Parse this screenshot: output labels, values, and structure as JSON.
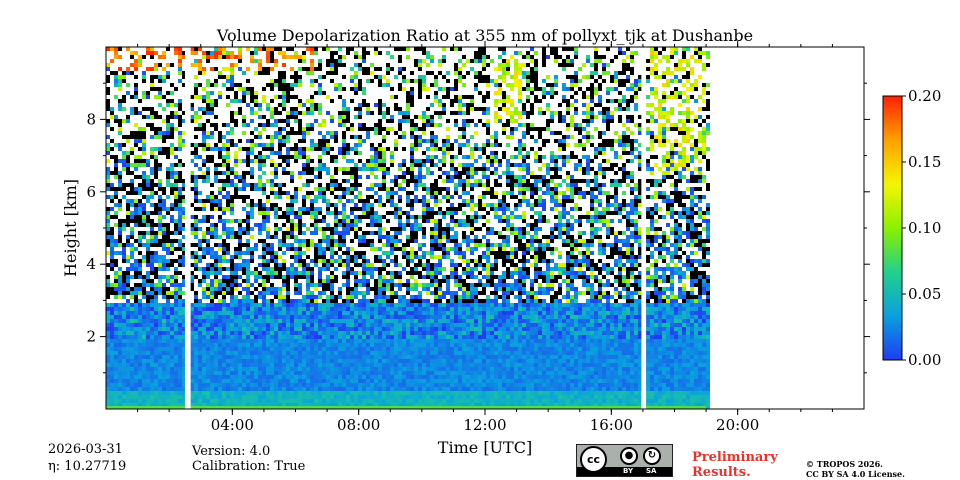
{
  "chart_data": {
    "type": "heatmap",
    "title": "Volume Depolarization Ratio at 355 nm of pollyxt_tjk at Dushanbe",
    "xlabel": "Time [UTC]",
    "ylabel": "Height [km]",
    "xlim_hours": [
      0,
      24
    ],
    "ylim_km": [
      0,
      10
    ],
    "x_ticks": [
      {
        "hour": 4,
        "label": "04:00"
      },
      {
        "hour": 8,
        "label": "08:00"
      },
      {
        "hour": 12,
        "label": "12:00"
      },
      {
        "hour": 16,
        "label": "16:00"
      },
      {
        "hour": 20,
        "label": "20:00"
      }
    ],
    "x_minor_step_hours": 1,
    "y_ticks": [
      {
        "km": 2,
        "label": "2"
      },
      {
        "km": 4,
        "label": "4"
      },
      {
        "km": 6,
        "label": "6"
      },
      {
        "km": 8,
        "label": "8"
      }
    ],
    "colorbar": {
      "min": 0.0,
      "max": 0.2,
      "ticks": [
        {
          "value": 0.0,
          "label": "0.00"
        },
        {
          "value": 0.05,
          "label": "0.05"
        },
        {
          "value": 0.1,
          "label": "0.10"
        },
        {
          "value": 0.15,
          "label": "0.15"
        },
        {
          "value": 0.2,
          "label": "0.20"
        }
      ],
      "colormap": [
        "#1f3df0",
        "#0aa0e0",
        "#22d08a",
        "#8cf000",
        "#f5f500",
        "#ffa000",
        "#ff2000"
      ]
    },
    "data_coverage_hours": [
      0,
      19.0
    ],
    "data_gaps_hours": [
      [
        2.5,
        2.68
      ],
      [
        16.95,
        17.1
      ]
    ],
    "layers": [
      {
        "name": "aerosol boundary layer",
        "height_km": [
          0,
          3
        ],
        "depol_ratio": 0.03
      },
      {
        "name": "surface layer",
        "height_km": [
          0,
          0.6
        ],
        "depol_ratio": 0.05
      },
      {
        "name": "noisy free troposphere",
        "height_km": [
          3,
          10
        ],
        "depol_ratio": "noise"
      },
      {
        "name": "cirrus cloud",
        "time_hours": [
          0,
          6.5
        ],
        "height_km": [
          9.4,
          10
        ],
        "depol_ratio": 0.2
      },
      {
        "name": "cirrus fall streak",
        "time_hours": [
          12.2,
          13.1
        ],
        "height_km": [
          8,
          9.8
        ],
        "depol_ratio": 0.15
      },
      {
        "name": "cirrus cloud",
        "time_hours": [
          17.1,
          18.9
        ],
        "height_km": [
          6.5,
          10
        ],
        "depol_ratio": 0.15
      }
    ]
  },
  "footer": {
    "date": "2026-03-31",
    "eta": "η: 10.27719",
    "version": "Version: 4.0",
    "calibration": "Calibration: True",
    "preliminary_line1": "Preliminary",
    "preliminary_line2": "Results.",
    "copyright_line1": "© TROPOS 2026.",
    "copyright_line2": "CC BY SA 4.0 License.",
    "license_badge": {
      "cc": "cc",
      "by": "BY",
      "sa": "SA"
    }
  }
}
